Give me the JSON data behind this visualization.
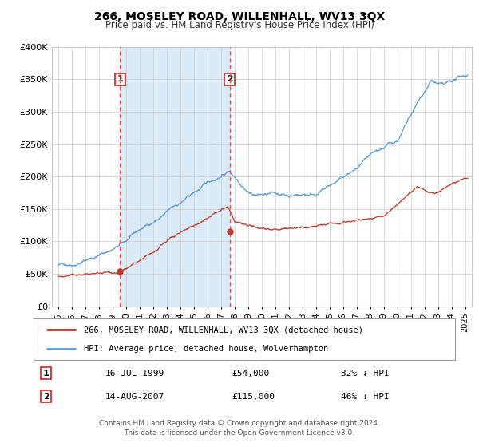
{
  "title": "266, MOSELEY ROAD, WILLENHALL, WV13 3QX",
  "subtitle": "Price paid vs. HM Land Registry's House Price Index (HPI)",
  "ylim": [
    0,
    400000
  ],
  "yticks": [
    0,
    50000,
    100000,
    150000,
    200000,
    250000,
    300000,
    350000,
    400000
  ],
  "ytick_labels": [
    "£0",
    "£50K",
    "£100K",
    "£150K",
    "£200K",
    "£250K",
    "£300K",
    "£350K",
    "£400K"
  ],
  "xlim_start": 1994.5,
  "xlim_end": 2025.5,
  "sale1_x": 1999.54,
  "sale1_y": 54000,
  "sale1_label": "1",
  "sale1_date": "16-JUL-1999",
  "sale1_price": "£54,000",
  "sale1_hpi": "32% ↓ HPI",
  "sale2_x": 2007.62,
  "sale2_y": 115000,
  "sale2_label": "2",
  "sale2_date": "14-AUG-2007",
  "sale2_price": "£115,000",
  "sale2_hpi": "46% ↓ HPI",
  "hpi_color": "#5b9bd5",
  "price_color": "#c0392b",
  "shade_color": "#dbeaf7",
  "vline_color": "#e05050",
  "grid_color": "#cccccc",
  "bg_color": "#ffffff",
  "legend1_label": "266, MOSELEY ROAD, WILLENHALL, WV13 3QX (detached house)",
  "legend2_label": "HPI: Average price, detached house, Wolverhampton",
  "footer1": "Contains HM Land Registry data © Crown copyright and database right 2024.",
  "footer2": "This data is licensed under the Open Government Licence v3.0."
}
